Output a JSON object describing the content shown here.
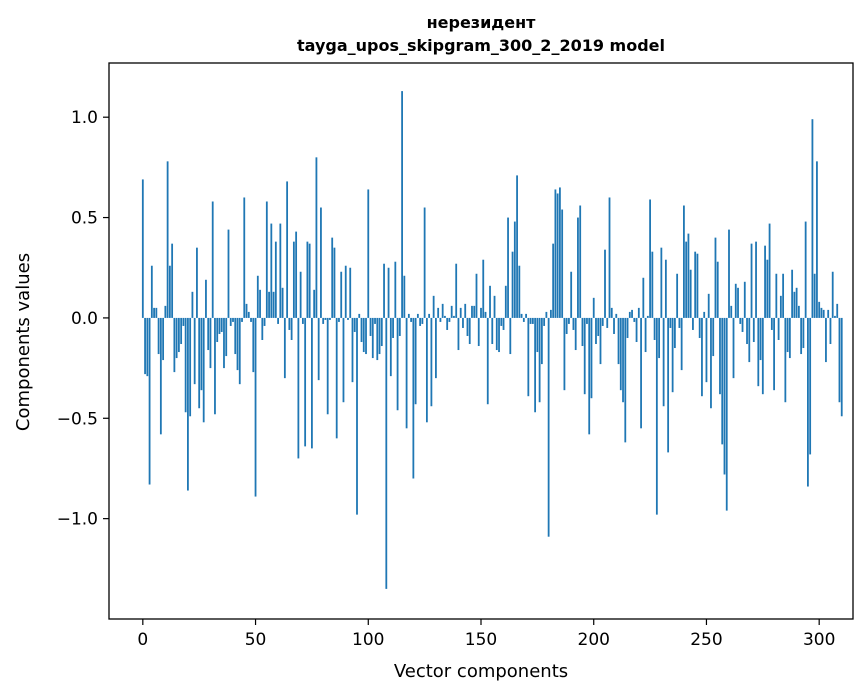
{
  "chart_data": {
    "type": "bar",
    "title": "нерезидент",
    "subtitle": "tayga_upos_skipgram_300_2_2019 model",
    "xlabel": "Vector components",
    "ylabel": "Components values",
    "xlim": [
      -15,
      315
    ],
    "ylim": [
      -1.5,
      1.27
    ],
    "x_ticks": [
      0,
      50,
      100,
      150,
      200,
      250,
      300
    ],
    "x_tick_labels": [
      "0",
      "50",
      "100",
      "150",
      "200",
      "250",
      "300"
    ],
    "y_ticks": [
      -1.0,
      -0.5,
      0.0,
      0.5,
      1.0
    ],
    "y_tick_labels": [
      "−1.0",
      "−0.5",
      "0.0",
      "0.5",
      "1.0"
    ],
    "bar_color": "#1f77b4",
    "grid": false,
    "series": [
      {
        "name": "нерезидент",
        "values": [
          0.69,
          -0.28,
          -0.29,
          -0.83,
          0.26,
          0.05,
          0.05,
          -0.18,
          -0.58,
          -0.21,
          0.06,
          0.78,
          0.26,
          0.37,
          -0.27,
          -0.2,
          -0.17,
          -0.13,
          -0.04,
          -0.47,
          -0.86,
          -0.49,
          0.13,
          -0.33,
          0.35,
          -0.45,
          -0.36,
          -0.52,
          0.19,
          -0.16,
          -0.25,
          0.58,
          -0.48,
          -0.12,
          -0.08,
          -0.07,
          -0.25,
          -0.19,
          0.44,
          -0.04,
          -0.02,
          -0.18,
          -0.26,
          -0.33,
          -0.02,
          0.6,
          0.07,
          0.03,
          -0.02,
          -0.27,
          -0.89,
          0.21,
          0.14,
          -0.11,
          -0.04,
          0.58,
          0.13,
          0.47,
          0.13,
          0.38,
          -0.03,
          0.47,
          0.15,
          -0.3,
          0.68,
          -0.06,
          -0.11,
          0.38,
          0.43,
          -0.7,
          0.23,
          -0.03,
          -0.64,
          0.38,
          0.37,
          -0.65,
          0.14,
          0.8,
          -0.31,
          0.55,
          -0.03,
          -0.01,
          -0.48,
          -0.01,
          0.4,
          0.35,
          -0.6,
          -0.02,
          0.23,
          -0.42,
          0.26,
          -0.01,
          0.25,
          -0.32,
          -0.07,
          -0.98,
          0.02,
          -0.12,
          -0.17,
          -0.18,
          0.64,
          -0.09,
          -0.2,
          -0.03,
          -0.21,
          -0.18,
          -0.14,
          0.27,
          -1.35,
          0.25,
          -0.29,
          -0.1,
          0.28,
          -0.46,
          -0.09,
          1.13,
          0.21,
          -0.55,
          0.02,
          -0.02,
          -0.8,
          -0.43,
          0.02,
          -0.04,
          -0.03,
          0.55,
          -0.52,
          0.02,
          -0.44,
          0.11,
          -0.3,
          0.05,
          -0.02,
          0.07,
          0.01,
          -0.06,
          -0.02,
          0.06,
          0.01,
          0.27,
          -0.16,
          0.05,
          -0.05,
          0.07,
          -0.09,
          -0.13,
          0.06,
          0.06,
          0.22,
          -0.14,
          0.05,
          0.29,
          0.03,
          -0.43,
          0.16,
          -0.13,
          0.11,
          -0.16,
          -0.17,
          -0.04,
          -0.06,
          0.16,
          0.5,
          -0.18,
          0.33,
          0.48,
          0.71,
          0.26,
          0.02,
          -0.02,
          0.02,
          -0.39,
          -0.03,
          -0.03,
          -0.47,
          -0.17,
          -0.42,
          -0.23,
          -0.04,
          0.03,
          -1.09,
          0.04,
          0.37,
          0.64,
          0.62,
          0.65,
          0.54,
          -0.36,
          -0.08,
          -0.03,
          0.23,
          -0.06,
          -0.16,
          0.5,
          0.56,
          -0.14,
          -0.38,
          -0.03,
          -0.58,
          -0.4,
          0.1,
          -0.13,
          -0.09,
          -0.23,
          -0.04,
          0.34,
          -0.05,
          0.6,
          0.05,
          -0.08,
          0.02,
          -0.23,
          -0.36,
          -0.42,
          -0.62,
          -0.1,
          0.03,
          0.04,
          -0.02,
          -0.12,
          0.05,
          -0.55,
          0.2,
          -0.17,
          0.01,
          0.59,
          0.33,
          -0.11,
          -0.98,
          -0.2,
          0.35,
          -0.44,
          0.29,
          -0.67,
          -0.05,
          -0.37,
          -0.15,
          0.22,
          -0.05,
          -0.26,
          0.56,
          0.38,
          0.42,
          0.24,
          -0.06,
          0.33,
          0.32,
          -0.1,
          -0.39,
          0.03,
          -0.32,
          0.12,
          -0.45,
          -0.19,
          0.4,
          0.28,
          -0.38,
          -0.63,
          -0.78,
          -0.96,
          0.44,
          0.06,
          -0.3,
          0.17,
          0.15,
          -0.03,
          -0.07,
          0.18,
          -0.13,
          -0.22,
          0.37,
          -0.12,
          0.38,
          -0.34,
          -0.21,
          -0.38,
          0.36,
          0.29,
          0.47,
          -0.06,
          -0.36,
          0.22,
          -0.11,
          0.11,
          0.22,
          -0.42,
          -0.17,
          -0.2,
          0.24,
          0.13,
          0.15,
          0.06,
          -0.18,
          -0.15,
          0.48,
          -0.84,
          -0.68,
          0.99,
          0.22,
          0.78,
          0.08,
          0.05,
          0.04,
          -0.22,
          0.04,
          -0.13,
          0.23,
          0.01,
          0.07,
          -0.42,
          -0.49
        ]
      }
    ]
  }
}
